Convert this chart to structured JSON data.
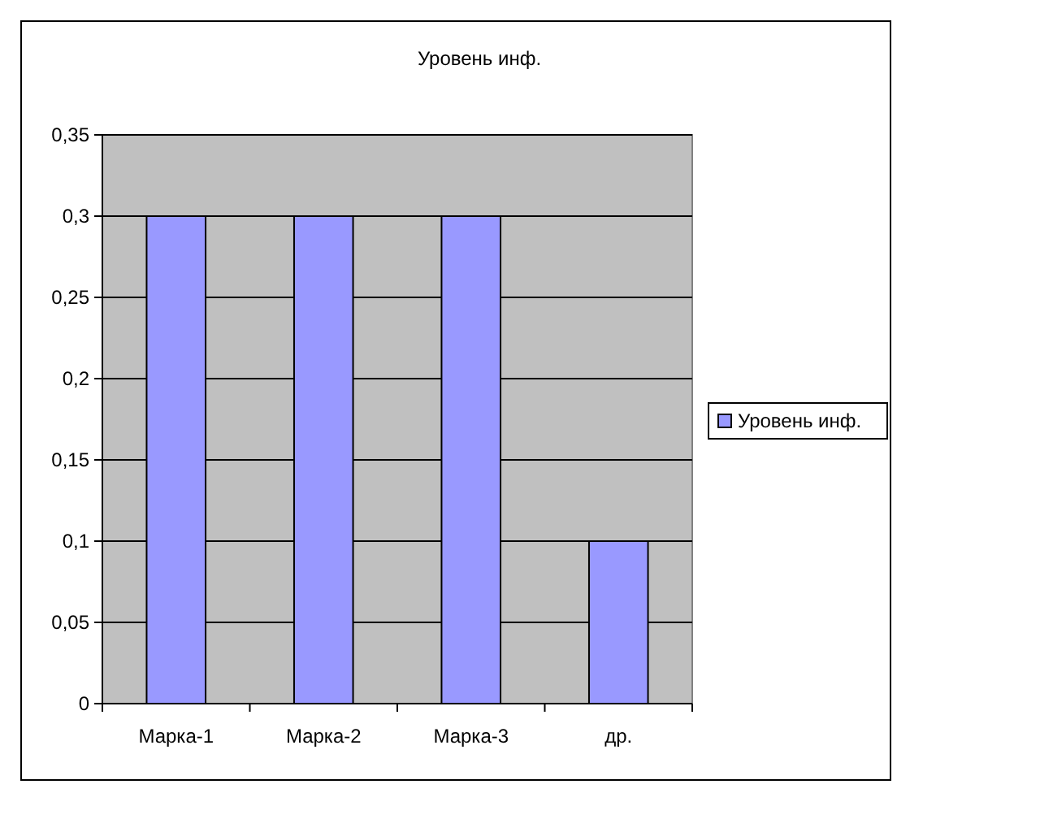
{
  "chart_data": {
    "type": "bar",
    "title": "Уровень инф.",
    "categories": [
      "Марка-1",
      "Марка-2",
      "Марка-3",
      "др."
    ],
    "series": [
      {
        "name": "Уровень инф.",
        "color": "#9999ff",
        "values": [
          0.3,
          0.3,
          0.3,
          0.1
        ]
      }
    ],
    "ylim": [
      0,
      0.35
    ],
    "yticks": [
      {
        "value": 0,
        "label": "0"
      },
      {
        "value": 0.05,
        "label": "0,05"
      },
      {
        "value": 0.1,
        "label": "0,1"
      },
      {
        "value": 0.15,
        "label": "0,15"
      },
      {
        "value": 0.2,
        "label": "0,2"
      },
      {
        "value": 0.25,
        "label": "0,25"
      },
      {
        "value": 0.3,
        "label": "0,3"
      },
      {
        "value": 0.35,
        "label": "0,35"
      }
    ],
    "grid": "y",
    "legend": "right"
  }
}
